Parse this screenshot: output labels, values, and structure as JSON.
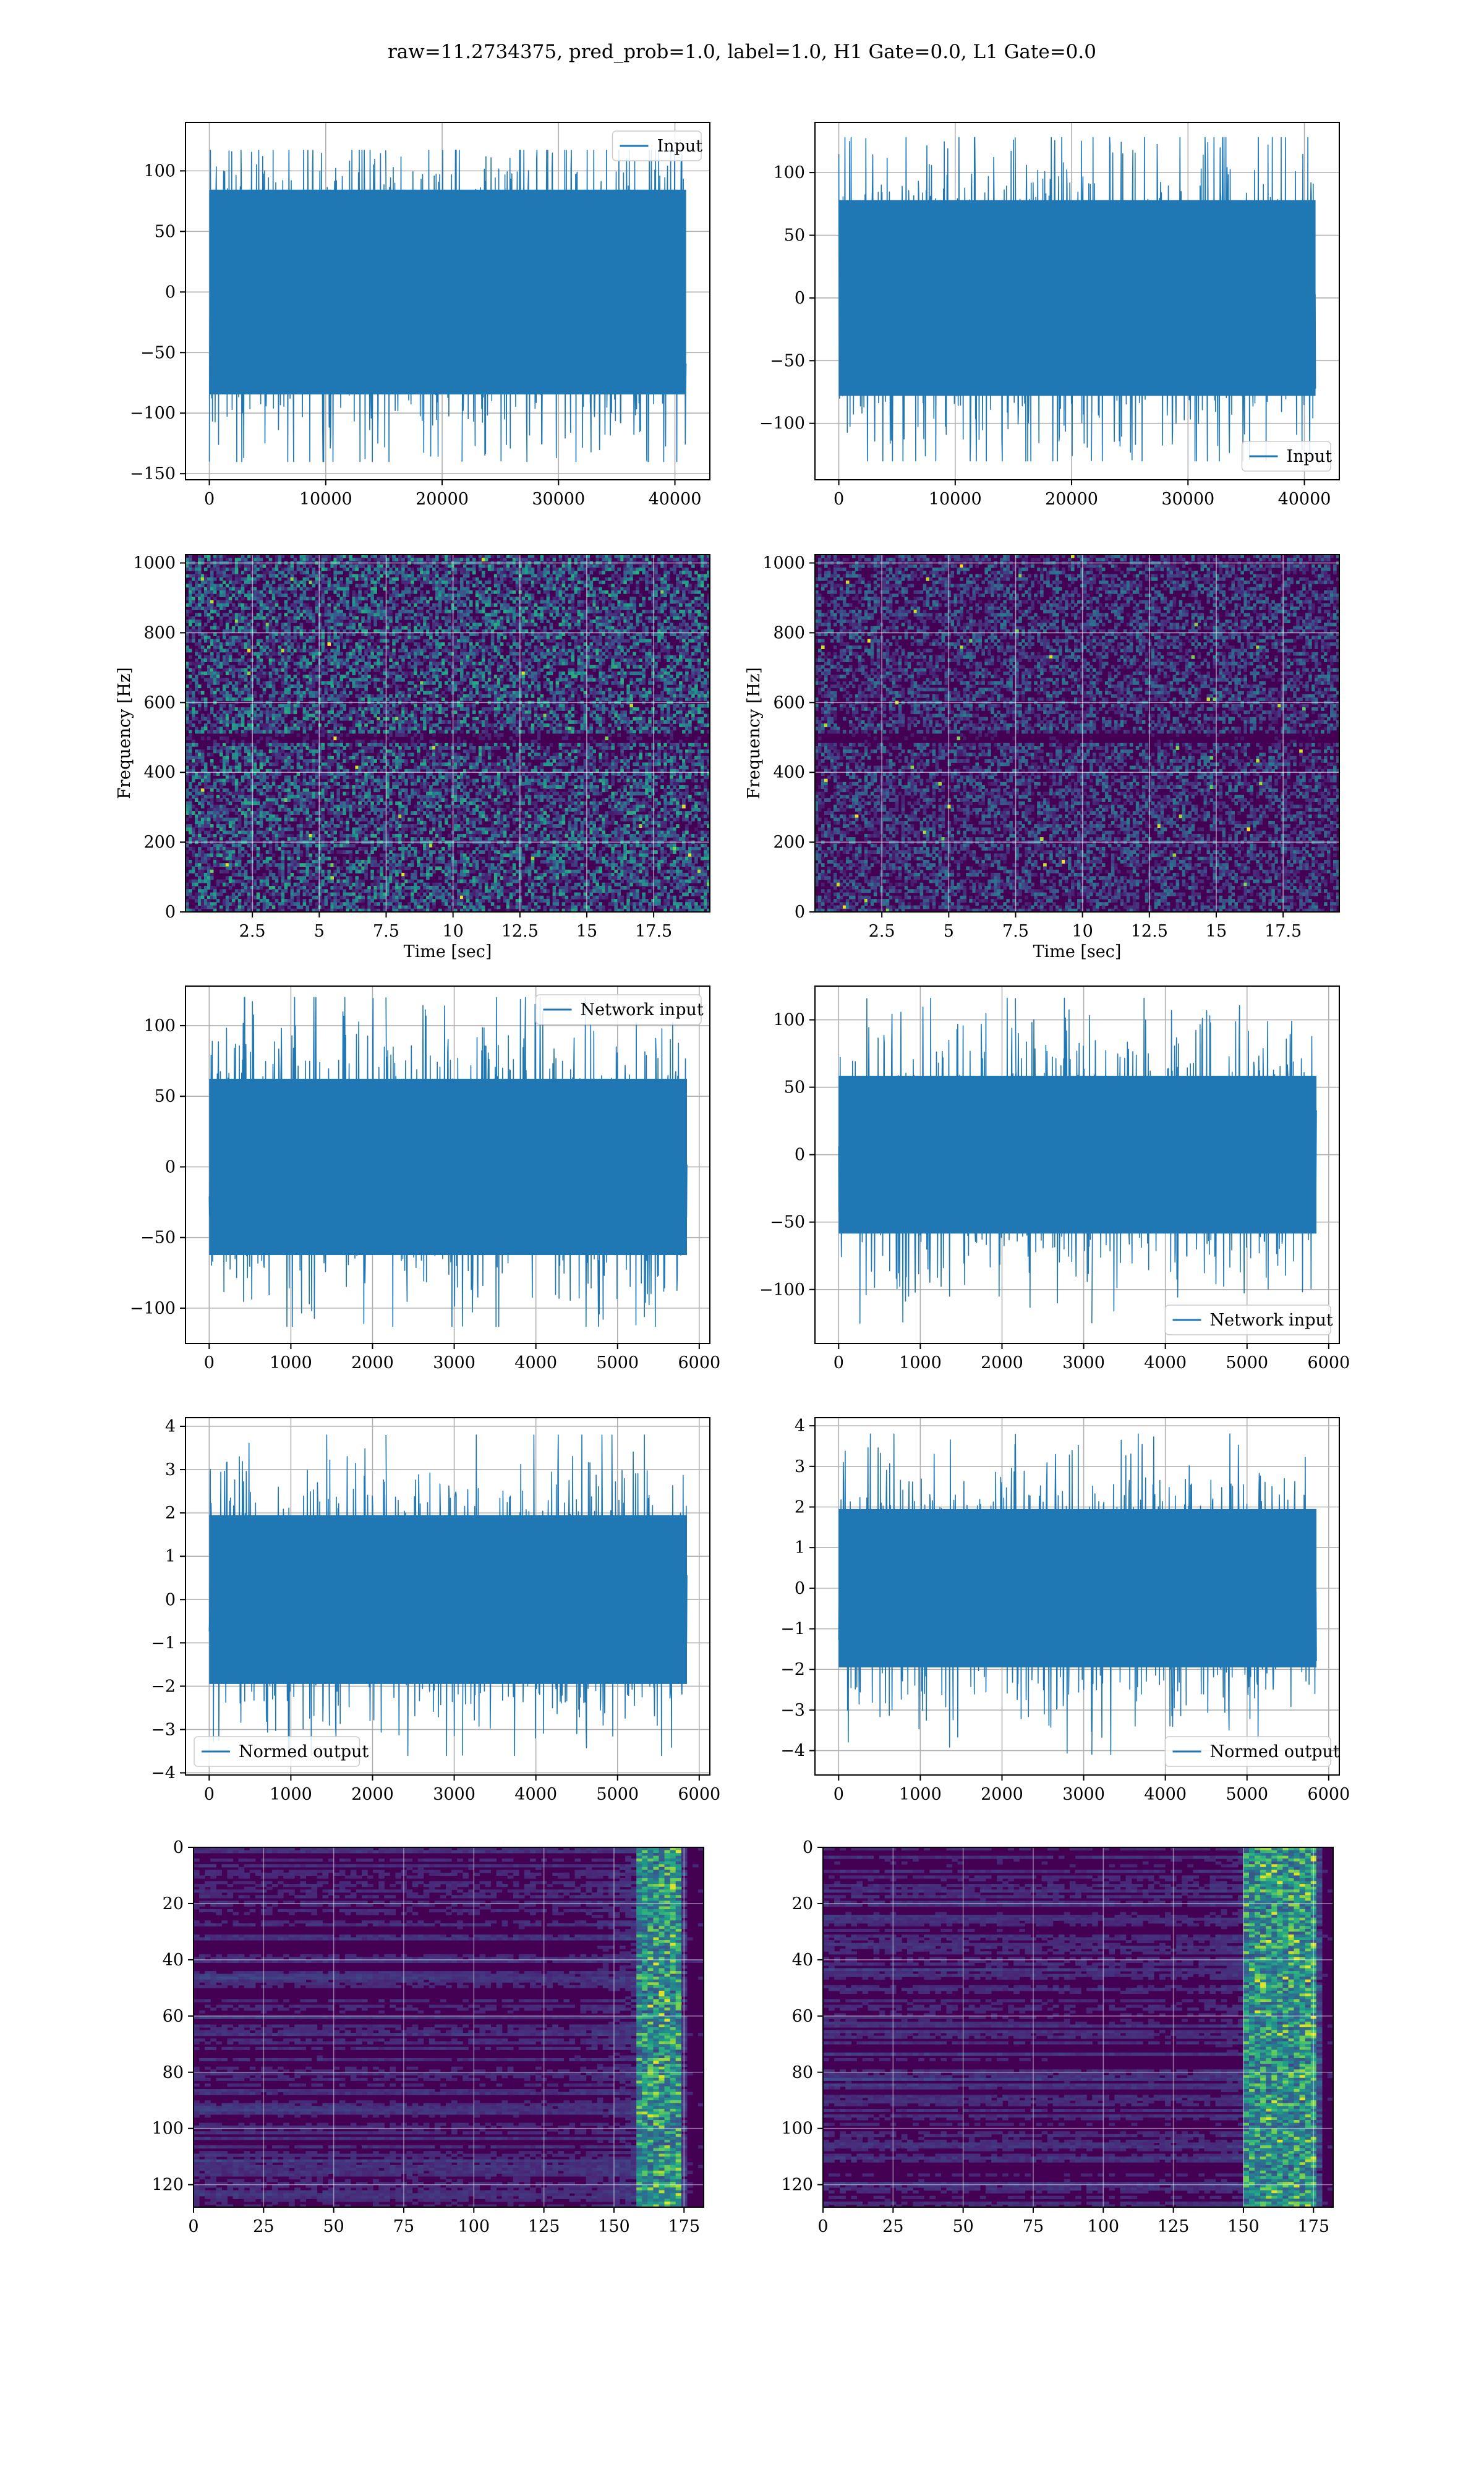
{
  "figure": {
    "title": "raw=11.2734375, pred_prob=1.0, label=1.0, H1 Gate=0.0, L1 Gate=0.0"
  },
  "colors": {
    "line": "#1f77b4",
    "grid": "#b0b0b0",
    "heat_low": "#440154",
    "heat_mid": "#21918c",
    "heat_high": "#fde725"
  },
  "chart_data": [
    {
      "id": "input-left",
      "type": "line",
      "style": "dense-noise",
      "series": [
        {
          "name": "Input",
          "x_range": [
            0,
            40960
          ],
          "y_min": -140,
          "y_max": 117,
          "spread": 65
        }
      ],
      "xlim": [
        -2048,
        43000
      ],
      "ylim": [
        -155,
        140
      ],
      "xticks": [
        0,
        10000,
        20000,
        30000,
        40000
      ],
      "yticks": [
        -150,
        -100,
        -50,
        0,
        50,
        100
      ],
      "legend": "top-right",
      "grid": true,
      "xlabel": "",
      "ylabel": ""
    },
    {
      "id": "input-right",
      "type": "line",
      "style": "dense-noise",
      "series": [
        {
          "name": "Input",
          "x_range": [
            0,
            40960
          ],
          "y_min": -130,
          "y_max": 128,
          "spread": 60
        }
      ],
      "xlim": [
        -2048,
        43000
      ],
      "ylim": [
        -145,
        140
      ],
      "xticks": [
        0,
        10000,
        20000,
        30000,
        40000
      ],
      "yticks": [
        -100,
        -50,
        0,
        50,
        100
      ],
      "legend": "bottom-right",
      "grid": true,
      "xlabel": "",
      "ylabel": ""
    },
    {
      "id": "spectrogram-left",
      "type": "heatmap",
      "style": "spectrogram",
      "xlim": [
        0,
        19.6
      ],
      "ylim": [
        0,
        1024
      ],
      "xticks": [
        2.5,
        5.0,
        7.5,
        10.0,
        12.5,
        15.0,
        17.5
      ],
      "yticks": [
        0,
        200,
        400,
        600,
        800,
        1000
      ],
      "xlabel": "Time [sec]",
      "ylabel": "Frequency [Hz]",
      "grid": true
    },
    {
      "id": "spectrogram-right",
      "type": "heatmap",
      "style": "spectrogram",
      "xlim": [
        0,
        19.6
      ],
      "ylim": [
        0,
        1024
      ],
      "xticks": [
        2.5,
        5.0,
        7.5,
        10.0,
        12.5,
        15.0,
        17.5
      ],
      "yticks": [
        0,
        200,
        400,
        600,
        800,
        1000
      ],
      "xlabel": "Time [sec]",
      "ylabel": "Frequency [Hz]",
      "grid": true
    },
    {
      "id": "network-input-left",
      "type": "line",
      "style": "dense-noise",
      "series": [
        {
          "name": "Network input",
          "x_range": [
            0,
            5850
          ],
          "y_min": -113,
          "y_max": 120,
          "spread": 48
        }
      ],
      "xlim": [
        -290,
        6130
      ],
      "ylim": [
        -125,
        128
      ],
      "xticks": [
        0,
        1000,
        2000,
        3000,
        4000,
        5000,
        6000
      ],
      "yticks": [
        -100,
        -50,
        0,
        50,
        100
      ],
      "legend": "top-right",
      "grid": true,
      "xlabel": "",
      "ylabel": ""
    },
    {
      "id": "network-input-right",
      "type": "line",
      "style": "dense-noise",
      "series": [
        {
          "name": "Network input",
          "x_range": [
            0,
            5850
          ],
          "y_min": -125,
          "y_max": 116,
          "spread": 45
        }
      ],
      "xlim": [
        -290,
        6130
      ],
      "ylim": [
        -140,
        125
      ],
      "xticks": [
        0,
        1000,
        2000,
        3000,
        4000,
        5000,
        6000
      ],
      "yticks": [
        -100,
        -50,
        0,
        50,
        100
      ],
      "legend": "bottom-right",
      "grid": true,
      "xlabel": "",
      "ylabel": ""
    },
    {
      "id": "normed-output-left",
      "type": "line",
      "style": "dense-noise",
      "series": [
        {
          "name": "Normed output",
          "x_range": [
            0,
            5850
          ],
          "y_min": -3.6,
          "y_max": 3.8,
          "spread": 1.5
        }
      ],
      "xlim": [
        -290,
        6130
      ],
      "ylim": [
        -4.05,
        4.2
      ],
      "xticks": [
        0,
        1000,
        2000,
        3000,
        4000,
        5000,
        6000
      ],
      "yticks": [
        -4,
        -3,
        -2,
        -1,
        0,
        1,
        2,
        3,
        4
      ],
      "legend": "bottom-left",
      "grid": true,
      "xlabel": "",
      "ylabel": ""
    },
    {
      "id": "normed-output-right",
      "type": "line",
      "style": "dense-noise",
      "series": [
        {
          "name": "Normed output",
          "x_range": [
            0,
            5850
          ],
          "y_min": -4.1,
          "y_max": 3.8,
          "spread": 1.5
        }
      ],
      "xlim": [
        -290,
        6130
      ],
      "ylim": [
        -4.6,
        4.2
      ],
      "xticks": [
        0,
        1000,
        2000,
        3000,
        4000,
        5000,
        6000
      ],
      "yticks": [
        -4,
        -3,
        -2,
        -1,
        0,
        1,
        2,
        3,
        4
      ],
      "legend": "bottom-right",
      "grid": true,
      "xlabel": "",
      "ylabel": ""
    },
    {
      "id": "feature-map-left",
      "type": "heatmap",
      "style": "featuremap",
      "rows": 128,
      "cols": 182,
      "xlim": [
        0,
        182
      ],
      "ylim": [
        128,
        0
      ],
      "xticks": [
        0,
        25,
        50,
        75,
        100,
        125,
        150,
        175
      ],
      "yticks": [
        0,
        20,
        40,
        60,
        80,
        100,
        120
      ],
      "hot_cols": [
        163,
        172
      ],
      "grid": true,
      "xlabel": "",
      "ylabel": ""
    },
    {
      "id": "feature-map-right",
      "type": "heatmap",
      "style": "featuremap",
      "rows": 128,
      "cols": 182,
      "xlim": [
        0,
        182
      ],
      "ylim": [
        128,
        0
      ],
      "xticks": [
        0,
        25,
        50,
        75,
        100,
        125,
        150,
        175
      ],
      "yticks": [
        0,
        20,
        40,
        60,
        80,
        100,
        120
      ],
      "hot_cols": [
        155,
        175
      ],
      "grid": true,
      "xlabel": "",
      "ylabel": ""
    }
  ]
}
